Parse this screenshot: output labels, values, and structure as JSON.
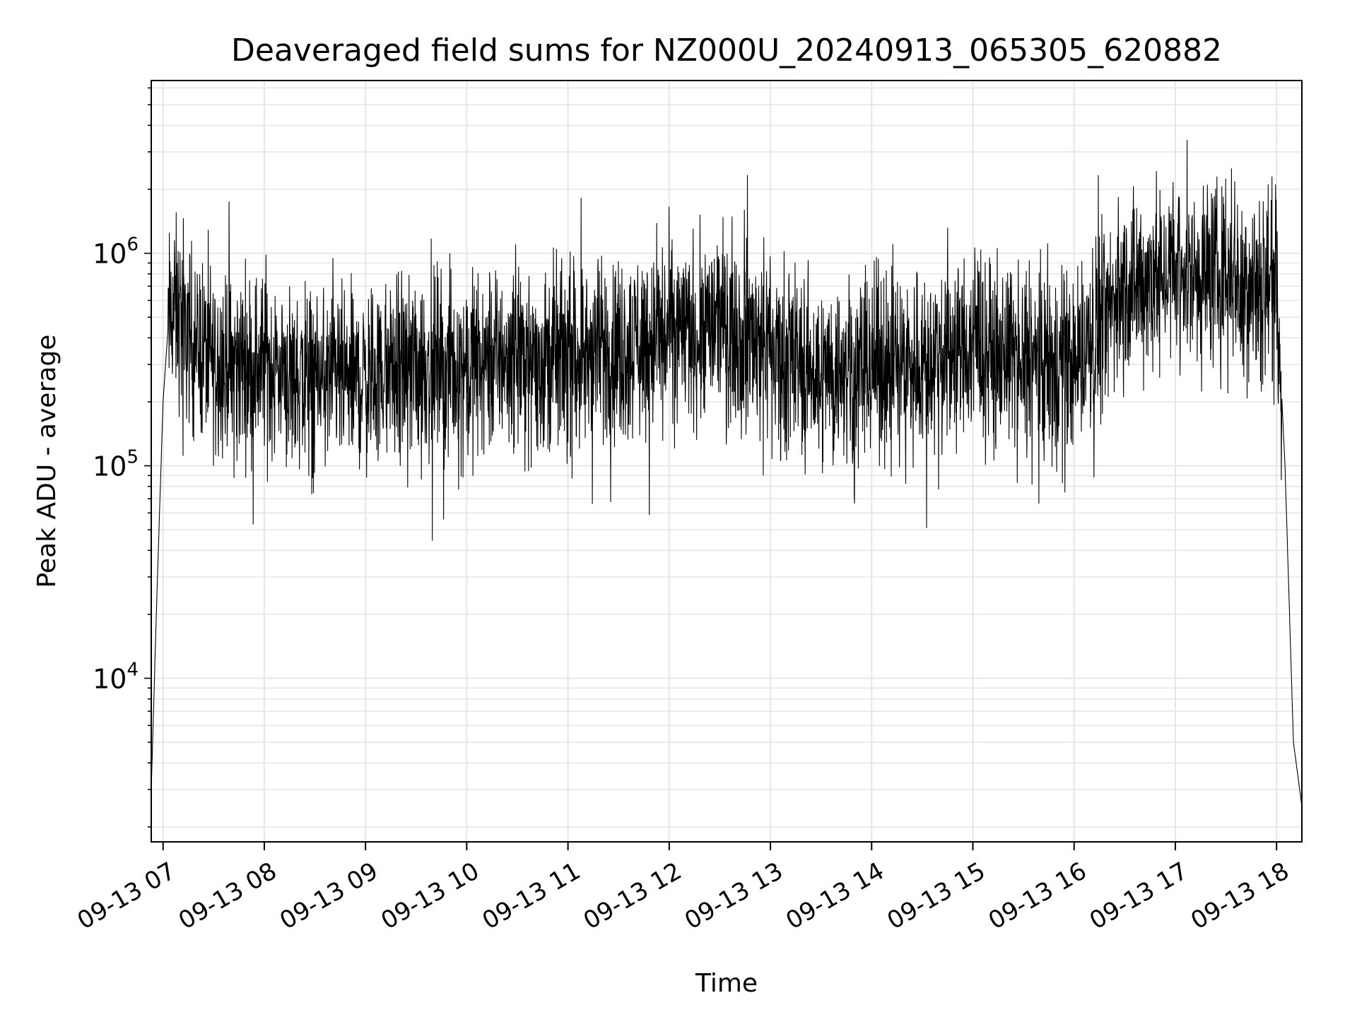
{
  "chart_data": {
    "type": "line",
    "title": "Deaveraged field sums for NZ000U_20240913_065305_620882",
    "xlabel": "Time",
    "ylabel": "Peak ADU - average",
    "x_ticks": [
      "09-13 07",
      "09-13 08",
      "09-13 09",
      "09-13 10",
      "09-13 11",
      "09-13 12",
      "09-13 13",
      "09-13 14",
      "09-13 15",
      "09-13 16",
      "09-13 17",
      "09-13 18"
    ],
    "x_tick_times": [
      "2024-09-13 07:00",
      "2024-09-13 08:00",
      "2024-09-13 09:00",
      "2024-09-13 10:00",
      "2024-09-13 11:00",
      "2024-09-13 12:00",
      "2024-09-13 13:00",
      "2024-09-13 14:00",
      "2024-09-13 15:00",
      "2024-09-13 16:00",
      "2024-09-13 17:00",
      "2024-09-13 18:00"
    ],
    "xlim": [
      "2024-09-13 06:53",
      "2024-09-13 18:15"
    ],
    "y_ticks": [
      {
        "base": "10",
        "exp": "4",
        "value": 10000
      },
      {
        "base": "10",
        "exp": "5",
        "value": 100000
      },
      {
        "base": "10",
        "exp": "6",
        "value": 1000000
      }
    ],
    "yscale": "log",
    "ylim": [
      1700,
      6500000
    ],
    "grid": true,
    "line_color": "#000000",
    "series": [
      {
        "x": [
          "2024-09-13 06:53",
          "2024-09-13 06:56",
          "2024-09-13 07:00",
          "2024-09-13 07:03",
          "2024-09-13 07:06",
          "2024-09-13 07:10",
          "2024-09-13 07:20",
          "2024-09-13 07:30",
          "2024-09-13 08:00",
          "2024-09-13 08:30",
          "2024-09-13 09:00",
          "2024-09-13 09:30",
          "2024-09-13 10:00",
          "2024-09-13 10:30",
          "2024-09-13 11:00",
          "2024-09-13 11:30",
          "2024-09-13 12:00",
          "2024-09-13 12:30",
          "2024-09-13 13:00",
          "2024-09-13 13:30",
          "2024-09-13 14:00",
          "2024-09-13 14:30",
          "2024-09-13 15:00",
          "2024-09-13 15:30",
          "2024-09-13 16:00",
          "2024-09-13 16:30",
          "2024-09-13 17:00",
          "2024-09-13 17:30",
          "2024-09-13 17:55",
          "2024-09-13 18:00",
          "2024-09-13 18:05",
          "2024-09-13 18:10",
          "2024-09-13 18:15"
        ],
        "y": [
          3000,
          20000,
          200000,
          450000,
          550000,
          500000,
          380000,
          320000,
          300000,
          250000,
          250000,
          300000,
          300000,
          350000,
          320000,
          360000,
          420000,
          480000,
          370000,
          270000,
          300000,
          320000,
          370000,
          320000,
          300000,
          700000,
          850000,
          800000,
          750000,
          700000,
          100000,
          5000,
          2500
        ]
      }
    ]
  }
}
